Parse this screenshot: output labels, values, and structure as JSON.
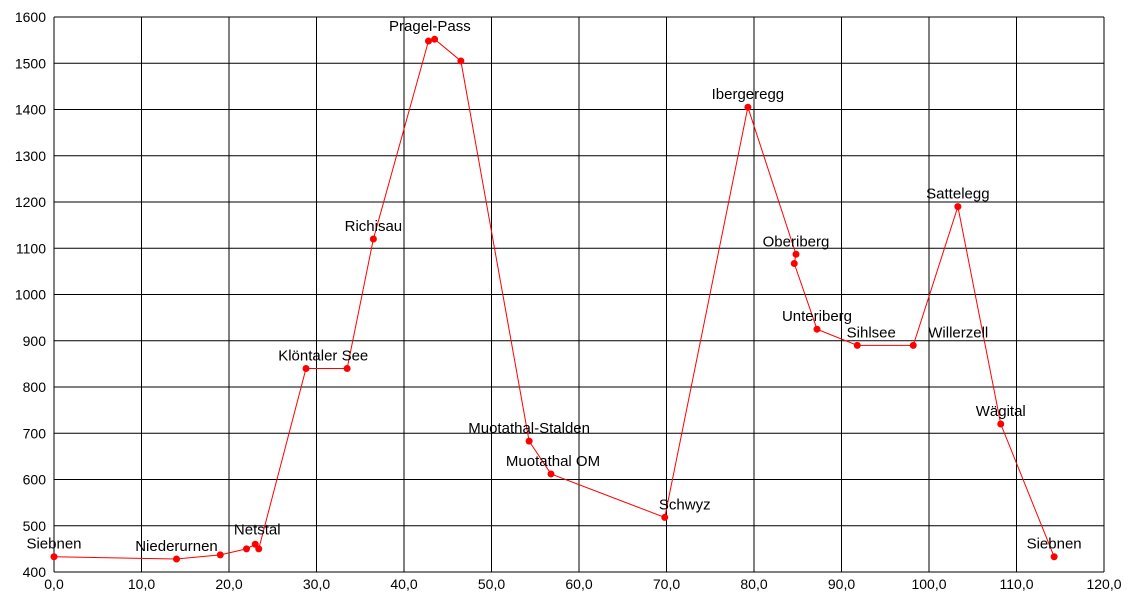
{
  "chart_data": {
    "type": "line",
    "title": "",
    "xlabel": "",
    "ylabel": "",
    "xlim": [
      0,
      120
    ],
    "ylim": [
      400,
      1600
    ],
    "x_ticks": [
      "0,0",
      "10,0",
      "20,0",
      "30,0",
      "40,0",
      "50,0",
      "60,0",
      "70,0",
      "80,0",
      "90,0",
      "100,0",
      "110,0",
      "120,0"
    ],
    "y_ticks": [
      "400",
      "500",
      "600",
      "700",
      "800",
      "900",
      "1000",
      "1100",
      "1200",
      "1300",
      "1400",
      "1500",
      "1600"
    ],
    "grid": true,
    "legend": "none",
    "series_color": "#ff0000",
    "points": [
      {
        "x": 0.0,
        "y": 433
      },
      {
        "x": 14.0,
        "y": 428
      },
      {
        "x": 19.0,
        "y": 437
      },
      {
        "x": 22.0,
        "y": 450
      },
      {
        "x": 23.0,
        "y": 460
      },
      {
        "x": 23.4,
        "y": 450
      },
      {
        "x": 28.8,
        "y": 840
      },
      {
        "x": 33.5,
        "y": 840
      },
      {
        "x": 36.5,
        "y": 1120
      },
      {
        "x": 42.8,
        "y": 1548
      },
      {
        "x": 43.5,
        "y": 1552
      },
      {
        "x": 46.5,
        "y": 1505
      },
      {
        "x": 54.3,
        "y": 683
      },
      {
        "x": 56.8,
        "y": 612
      },
      {
        "x": 69.8,
        "y": 518
      },
      {
        "x": 79.3,
        "y": 1405
      },
      {
        "x": 84.8,
        "y": 1087
      },
      {
        "x": 84.6,
        "y": 1067
      },
      {
        "x": 87.2,
        "y": 925
      },
      {
        "x": 91.8,
        "y": 890
      },
      {
        "x": 98.2,
        "y": 890
      },
      {
        "x": 103.3,
        "y": 1190
      },
      {
        "x": 108.2,
        "y": 720
      },
      {
        "x": 114.3,
        "y": 433
      }
    ],
    "annotations": [
      {
        "text": "Siebnen",
        "x": 0.0,
        "y": 433
      },
      {
        "text": "Niederurnen",
        "x": 14.0,
        "y": 428
      },
      {
        "text": "Netstal",
        "x": 23.0,
        "y": 460
      },
      {
        "text": "Klöntaler See",
        "x": 31.0,
        "y": 840
      },
      {
        "text": "Richisau",
        "x": 36.5,
        "y": 1120
      },
      {
        "text": "Pragel-Pass",
        "x": 43.3,
        "y": 1552
      },
      {
        "text": "Muotathal-Stalden",
        "x": 54.3,
        "y": 683
      },
      {
        "text": "Muotathal OM",
        "x": 56.8,
        "y": 612
      },
      {
        "text": "Schwyz",
        "x": 69.8,
        "y": 518
      },
      {
        "text": "Ibergeregg",
        "x": 79.3,
        "y": 1405
      },
      {
        "text": "Oberiberg",
        "x": 84.8,
        "y": 1087
      },
      {
        "text": "Unteriberg",
        "x": 87.2,
        "y": 925
      },
      {
        "text": "Sihlsee",
        "x": 91.8,
        "y": 890
      },
      {
        "text": "Willerzell",
        "x": 98.2,
        "y": 890
      },
      {
        "text": "Sattelegg",
        "x": 103.3,
        "y": 1190
      },
      {
        "text": "Wägital",
        "x": 108.2,
        "y": 720
      },
      {
        "text": "Siebnen",
        "x": 114.3,
        "y": 433
      }
    ]
  }
}
